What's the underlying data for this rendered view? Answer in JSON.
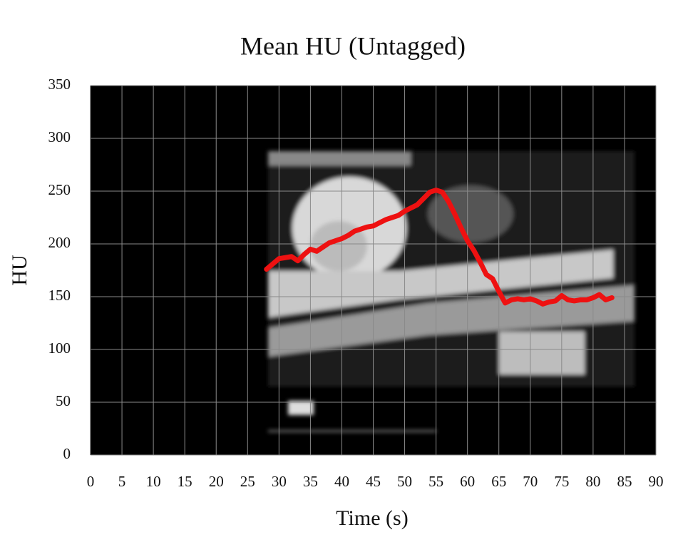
{
  "chart_data": {
    "type": "line",
    "title": "Mean HU (Untagged)",
    "x_label": "Time (s)",
    "y_label": "HU",
    "x": [
      28,
      29,
      30,
      31,
      32,
      33,
      34,
      35,
      36,
      37,
      38,
      39,
      40,
      41,
      42,
      43,
      44,
      45,
      46,
      47,
      48,
      49,
      50,
      51,
      52,
      53,
      54,
      55,
      56,
      57,
      58,
      59,
      60,
      61,
      62,
      63,
      64,
      65,
      66,
      67,
      68,
      69,
      70,
      71,
      72,
      73,
      74,
      75,
      76,
      77,
      78,
      79,
      80,
      81,
      82,
      83
    ],
    "series": [
      {
        "name": "Mean HU",
        "color": "#ee1111",
        "values": [
          176,
          181,
          186,
          187,
          188,
          184,
          190,
          195,
          193,
          197,
          201,
          203,
          205,
          208,
          212,
          214,
          216,
          217,
          220,
          223,
          225,
          227,
          231,
          234,
          237,
          243,
          249,
          251,
          249,
          240,
          228,
          215,
          203,
          194,
          183,
          171,
          167,
          155,
          144,
          147,
          148,
          147,
          148,
          146,
          143,
          145,
          146,
          151,
          147,
          146,
          147,
          147,
          149,
          152,
          147,
          149
        ]
      }
    ],
    "xlim": [
      0,
      90
    ],
    "xticks": [
      0,
      5,
      10,
      15,
      20,
      25,
      30,
      35,
      40,
      45,
      50,
      55,
      60,
      65,
      70,
      75,
      80,
      85,
      90
    ],
    "ylim": [
      0,
      350
    ],
    "yticks": [
      0,
      50,
      100,
      150,
      200,
      250,
      300,
      350
    ],
    "grid": true
  }
}
